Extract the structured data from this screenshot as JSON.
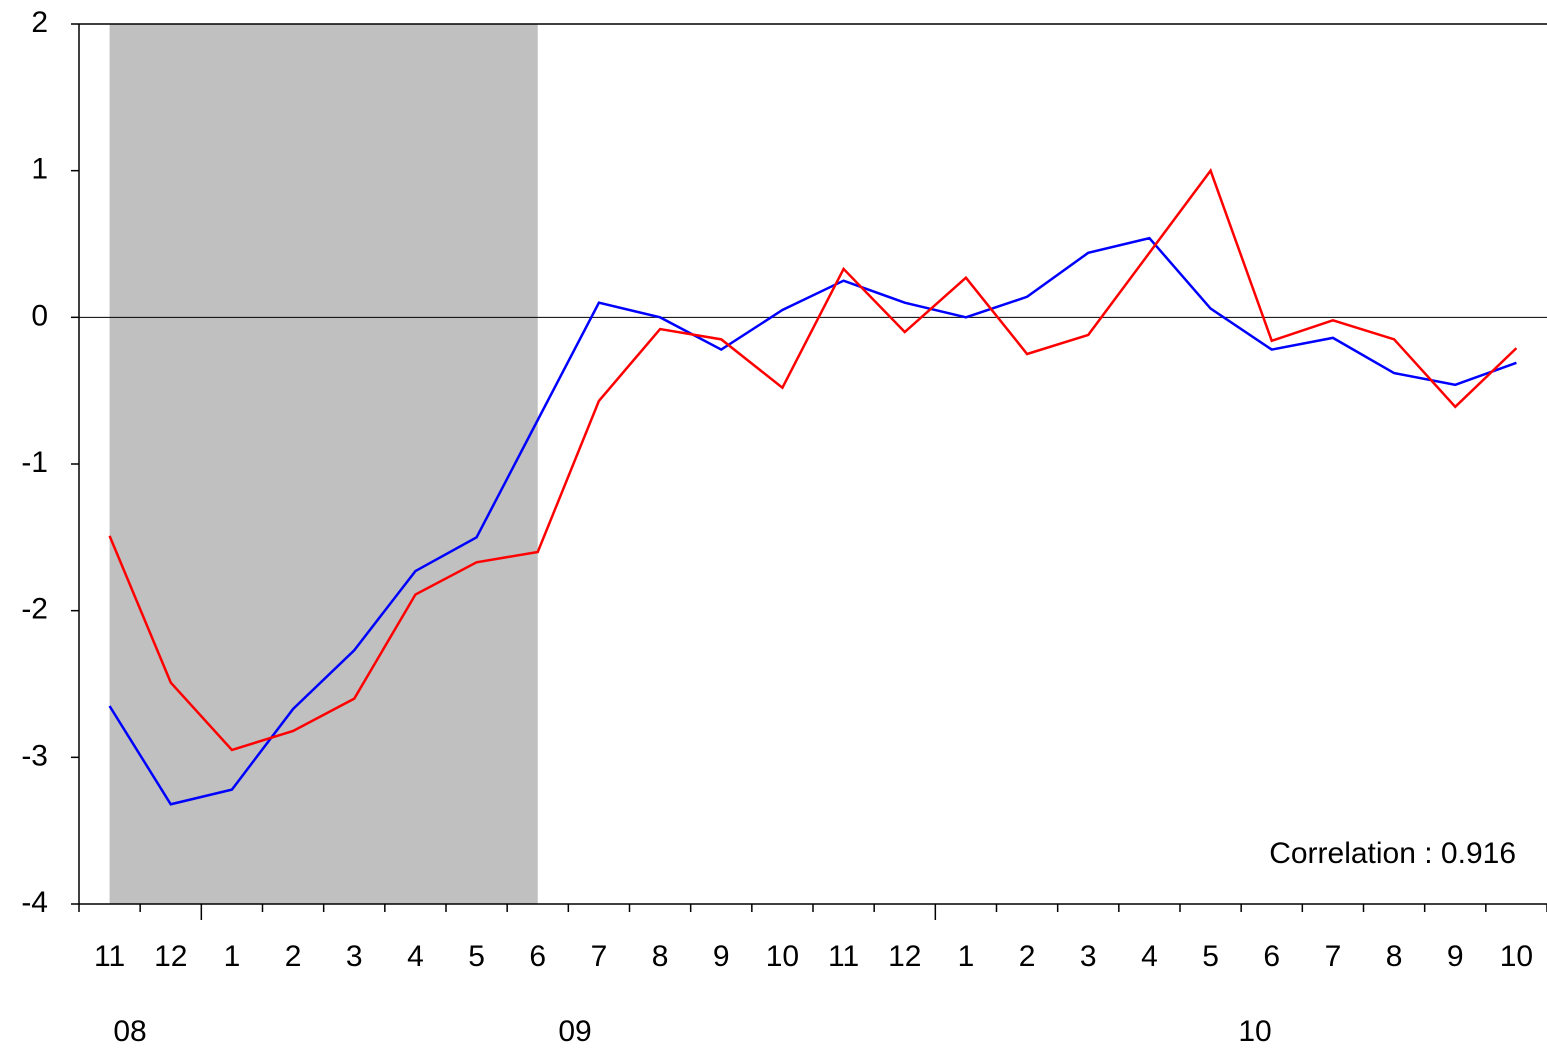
{
  "chart_data": {
    "type": "line",
    "categories": [
      "11",
      "12",
      "1",
      "2",
      "3",
      "4",
      "5",
      "6",
      "7",
      "8",
      "9",
      "10",
      "11",
      "12",
      "1",
      "2",
      "3",
      "4",
      "5",
      "6",
      "7",
      "8",
      "9",
      "10"
    ],
    "year_labels": [
      "08",
      "09",
      "10"
    ],
    "series": [
      {
        "color": "#0000ff",
        "values": [
          -2.65,
          -3.32,
          -3.22,
          -2.67,
          -2.27,
          -1.73,
          -1.5,
          -0.7,
          0.1,
          0.0,
          -0.22,
          0.05,
          0.25,
          0.1,
          0.0,
          0.14,
          0.44,
          0.54,
          0.06,
          -0.22,
          -0.14,
          -0.38,
          -0.46,
          -0.31
        ]
      },
      {
        "color": "#ff0000",
        "values": [
          -1.49,
          -2.49,
          -2.95,
          -2.82,
          -2.6,
          -1.89,
          -1.67,
          -1.6,
          -0.57,
          -0.08,
          -0.15,
          -0.48,
          0.33,
          -0.1,
          0.27,
          -0.25,
          -0.12,
          0.44,
          1.0,
          -0.16,
          -0.02,
          -0.15,
          -0.61,
          -0.21
        ]
      }
    ],
    "annotation": "Correlation : 0.916",
    "ylim": [
      -4,
      2
    ],
    "yticks": [
      -4,
      -3,
      -2,
      -1,
      0,
      1,
      2
    ],
    "shade_color": "#c0c0c0"
  }
}
